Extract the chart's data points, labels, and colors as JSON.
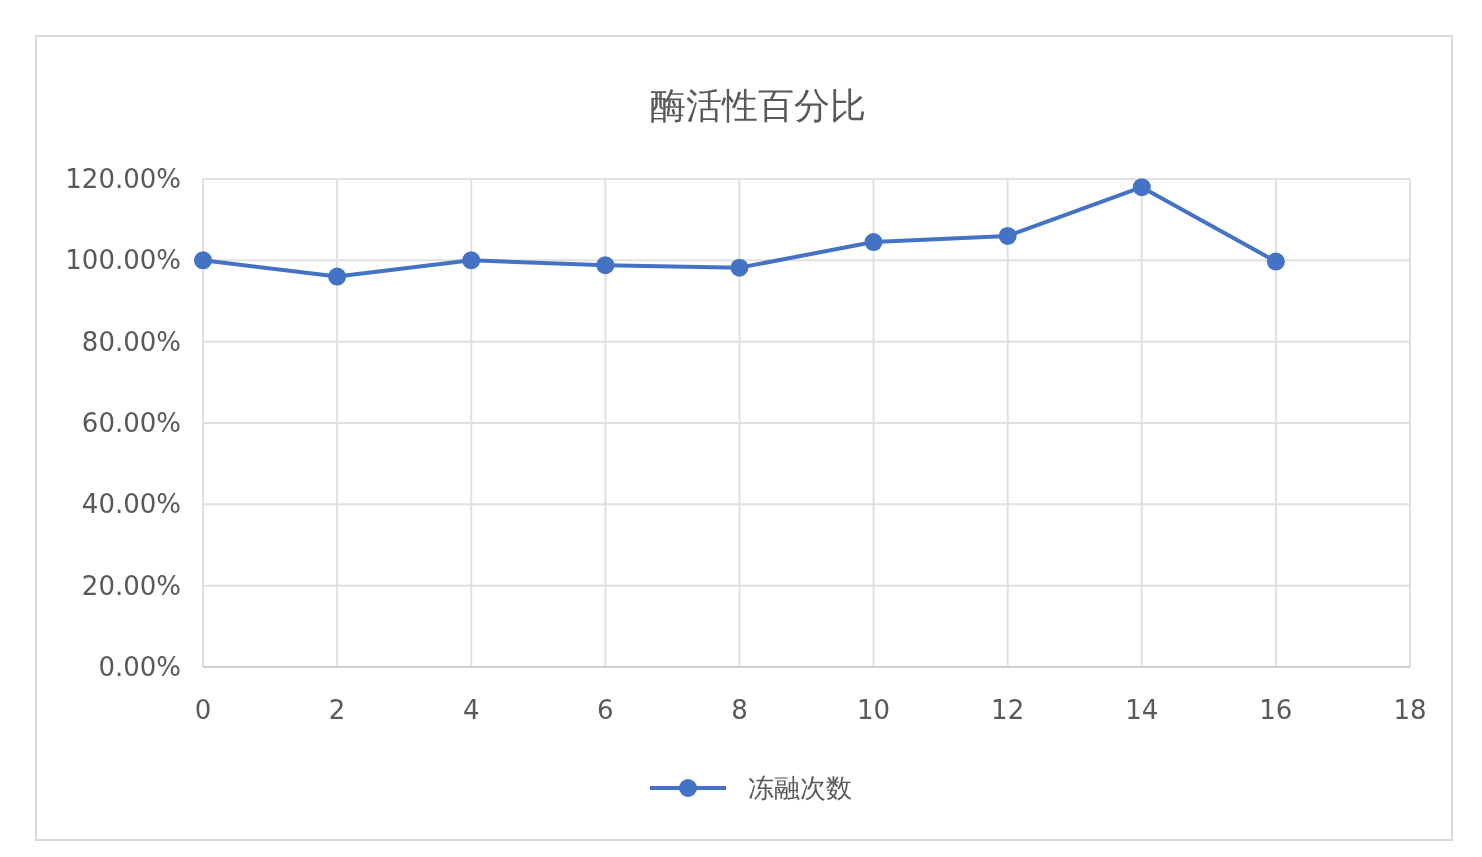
{
  "chart_data": {
    "type": "line",
    "title": "酶活性百分比",
    "x": [
      0,
      2,
      4,
      6,
      8,
      10,
      12,
      14,
      16
    ],
    "series": [
      {
        "name": "冻融次数",
        "color": "#4472c4",
        "values": [
          100,
          96,
          100,
          98.8,
          98.2,
          104.5,
          106,
          118,
          99.7
        ]
      }
    ],
    "xlim": [
      0,
      18
    ],
    "xticks": [
      0,
      2,
      4,
      6,
      8,
      10,
      12,
      14,
      16,
      18
    ],
    "ylim": [
      0,
      120
    ],
    "yticks": [
      {
        "value": 0,
        "label": "0.00%"
      },
      {
        "value": 20,
        "label": "20.00%"
      },
      {
        "value": 40,
        "label": "40.00%"
      },
      {
        "value": 60,
        "label": "60.00%"
      },
      {
        "value": 80,
        "label": "80.00%"
      },
      {
        "value": 100,
        "label": "100.00%"
      },
      {
        "value": 120,
        "label": "120.00%"
      }
    ],
    "grid": true,
    "legend": "bottom",
    "marker": "circle",
    "line_style": "solid"
  }
}
